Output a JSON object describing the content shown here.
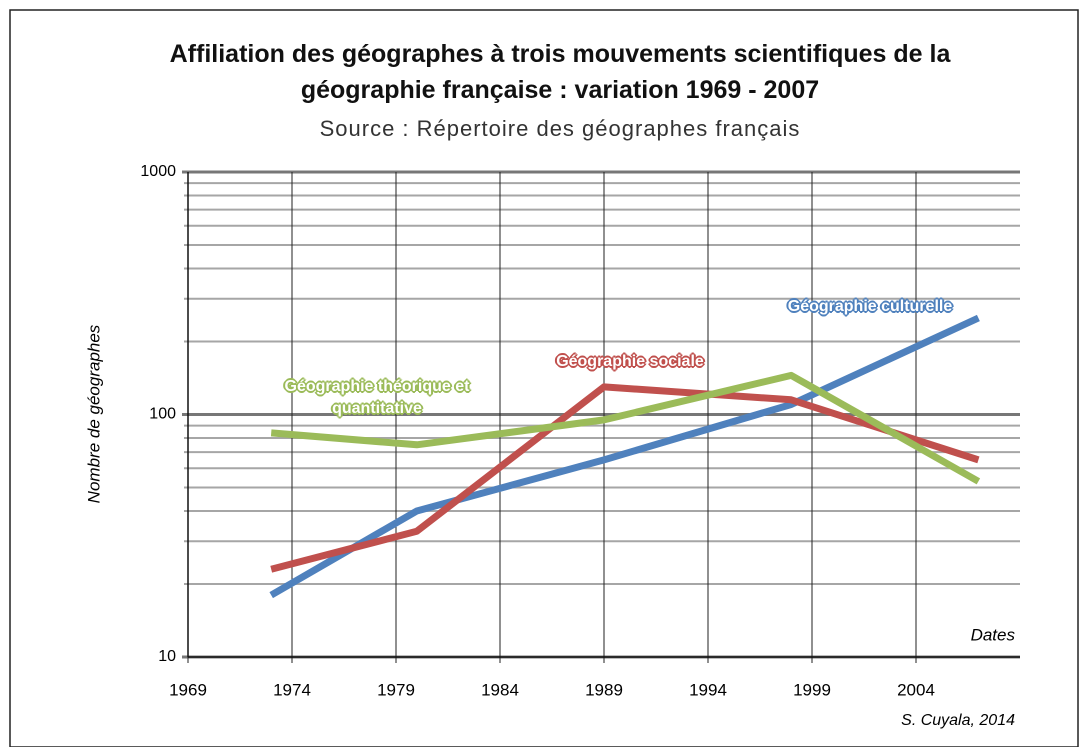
{
  "chart_data": {
    "type": "line",
    "title": "Affiliation des géographes à trois mouvements scientifiques de la géographie française : variation 1969 - 2007",
    "subtitle": "Source : Répertoire des géographes français",
    "y_label": "Nombre de géographes",
    "x_label": "Dates",
    "credit": "S. Cuyala, 2014",
    "x": [
      1973,
      1980,
      1989,
      1998,
      2007
    ],
    "series": [
      {
        "name": "Géographie culturelle",
        "color": "#4f81bd",
        "values": [
          18,
          40,
          65,
          110,
          250
        ]
      },
      {
        "name": "Géographie sociale",
        "color": "#c0504d",
        "values": [
          23,
          33,
          130,
          115,
          65
        ]
      },
      {
        "name": "Géographie théorique et quantitative",
        "color": "#9bbb59",
        "values": [
          84,
          75,
          95,
          145,
          53
        ]
      }
    ],
    "xlim": [
      1969,
      2009
    ],
    "xticks": [
      1969,
      1974,
      1979,
      1984,
      1989,
      1994,
      1999,
      2004
    ],
    "ylim": [
      10,
      1000
    ],
    "yticks": [
      10,
      100,
      1000
    ],
    "log_y": true,
    "grid": true
  }
}
